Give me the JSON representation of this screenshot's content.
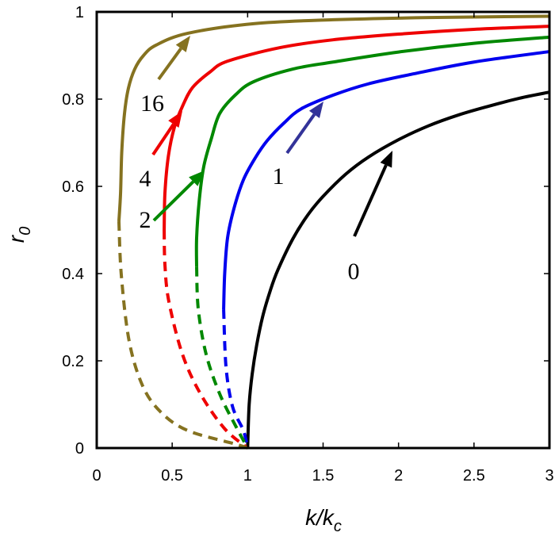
{
  "chart_data": {
    "type": "line",
    "title": "",
    "xlabel": {
      "main": "k/k",
      "sub": "c"
    },
    "ylabel": {
      "main": "r",
      "sub": "0"
    },
    "xlim": [
      0,
      3
    ],
    "ylim": [
      0,
      1
    ],
    "xticks": [
      "0",
      "0.5",
      "1",
      "1.5",
      "2",
      "2.5",
      "3"
    ],
    "yticks": [
      "0",
      "0.2",
      "0.4",
      "0.6",
      "0.8",
      "1"
    ],
    "grid": false,
    "series": [
      {
        "label": "0",
        "color": "#000000",
        "stable": [
          [
            1,
            0
          ],
          [
            1.01,
            0.099
          ],
          [
            1.03,
            0.169
          ],
          [
            1.06,
            0.236
          ],
          [
            1.1,
            0.302
          ],
          [
            1.15,
            0.361
          ],
          [
            1.2,
            0.408
          ],
          [
            1.3,
            0.48
          ],
          [
            1.4,
            0.535
          ],
          [
            1.5,
            0.577
          ],
          [
            1.65,
            0.628
          ],
          [
            1.8,
            0.667
          ],
          [
            2,
            0.707
          ],
          [
            2.2,
            0.739
          ],
          [
            2.4,
            0.764
          ],
          [
            2.6,
            0.784
          ],
          [
            2.8,
            0.802
          ],
          [
            3,
            0.816
          ]
        ],
        "unstable": []
      },
      {
        "label": "1",
        "color": "#0000ee",
        "stable": [
          [
            0.841,
            0.318
          ],
          [
            0.848,
            0.4
          ],
          [
            0.867,
            0.482
          ],
          [
            0.91,
            0.55
          ],
          [
            0.972,
            0.615
          ],
          [
            1.05,
            0.665
          ],
          [
            1.13,
            0.705
          ],
          [
            1.24,
            0.745
          ],
          [
            1.356,
            0.778
          ],
          [
            1.566,
            0.809
          ],
          [
            1.8,
            0.835
          ],
          [
            2.1,
            0.858
          ],
          [
            2.5,
            0.885
          ],
          [
            3,
            0.909
          ]
        ],
        "unstable": [
          [
            0.841,
            0.318
          ],
          [
            0.857,
            0.185
          ],
          [
            0.9,
            0.095
          ],
          [
            0.972,
            0.04
          ],
          [
            1,
            0
          ]
        ]
      },
      {
        "label": "2",
        "color": "#008800",
        "stable": [
          [
            0.662,
            0.415
          ],
          [
            0.662,
            0.482
          ],
          [
            0.68,
            0.57
          ],
          [
            0.709,
            0.645
          ],
          [
            0.76,
            0.71
          ],
          [
            0.815,
            0.767
          ],
          [
            0.92,
            0.81
          ],
          [
            1.04,
            0.84
          ],
          [
            1.3,
            0.869
          ],
          [
            1.566,
            0.885
          ],
          [
            2,
            0.908
          ],
          [
            2.5,
            0.928
          ],
          [
            3,
            0.942
          ]
        ],
        "unstable": [
          [
            0.662,
            0.415
          ],
          [
            0.673,
            0.318
          ],
          [
            0.725,
            0.215
          ],
          [
            0.815,
            0.124
          ],
          [
            0.92,
            0.051
          ],
          [
            1,
            0
          ]
        ]
      },
      {
        "label": "4",
        "color": "#ee0000",
        "stable": [
          [
            0.447,
            0.5
          ],
          [
            0.452,
            0.585
          ],
          [
            0.475,
            0.67
          ],
          [
            0.515,
            0.736
          ],
          [
            0.57,
            0.785
          ],
          [
            0.636,
            0.827
          ],
          [
            0.75,
            0.862
          ],
          [
            0.867,
            0.887
          ],
          [
            1.214,
            0.918
          ],
          [
            1.566,
            0.936
          ],
          [
            2,
            0.949
          ],
          [
            2.5,
            0.96
          ],
          [
            3,
            0.967
          ]
        ],
        "unstable": [
          [
            0.447,
            0.5
          ],
          [
            0.452,
            0.42
          ],
          [
            0.478,
            0.336
          ],
          [
            0.568,
            0.215
          ],
          [
            0.688,
            0.124
          ],
          [
            0.846,
            0.045
          ],
          [
            1,
            0
          ]
        ]
      },
      {
        "label": "16",
        "color": "#857220",
        "stable": [
          [
            0.147,
            0.52
          ],
          [
            0.158,
            0.585
          ],
          [
            0.166,
            0.68
          ],
          [
            0.184,
            0.767
          ],
          [
            0.21,
            0.825
          ],
          [
            0.252,
            0.869
          ],
          [
            0.31,
            0.9
          ],
          [
            0.394,
            0.924
          ],
          [
            0.604,
            0.951
          ],
          [
            1.04,
            0.973
          ],
          [
            1.566,
            0.982
          ],
          [
            2.2,
            0.987
          ],
          [
            3,
            0.99
          ]
        ],
        "unstable": [
          [
            0.147,
            0.52
          ],
          [
            0.163,
            0.396
          ],
          [
            0.215,
            0.245
          ],
          [
            0.305,
            0.142
          ],
          [
            0.426,
            0.082
          ],
          [
            0.604,
            0.04
          ],
          [
            0.92,
            0.009
          ],
          [
            1,
            0
          ]
        ]
      }
    ]
  }
}
